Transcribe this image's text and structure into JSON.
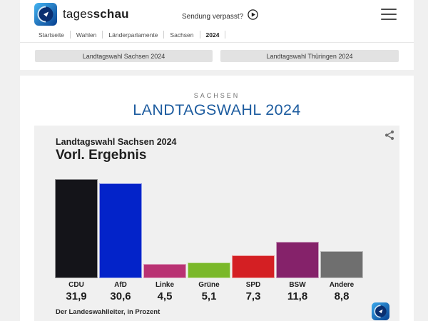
{
  "header": {
    "logo_regular": "tages",
    "logo_bold": "schau",
    "broadcast_link": "Sendung verpasst?",
    "breadcrumb": [
      "Startseite",
      "Wahlen",
      "Länderparlamente",
      "Sachsen",
      "2024"
    ],
    "icons": [
      "tagesschau-globe-icon",
      "play-icon",
      "hamburger-menu-icon"
    ]
  },
  "tabs": [
    {
      "label": "Landtagswahl Sachsen 2024"
    },
    {
      "label": "Landtagswahl Thüringen 2024"
    }
  ],
  "page": {
    "kicker": "SACHSEN",
    "title": "LANDTAGSWAHL 2024"
  },
  "chart": {
    "title": "Landtagswahl Sachsen 2024",
    "subtitle": "Vorl. Ergebnis",
    "source": "Der Landeswahlleiter, in Prozent",
    "icons": [
      "share-icon",
      "tagesschau-globe-icon"
    ]
  },
  "chart_data": {
    "type": "bar",
    "title": "Landtagswahl Sachsen 2024 – Vorl. Ergebnis",
    "categories": [
      "CDU",
      "AfD",
      "Linke",
      "Grüne",
      "SPD",
      "BSW",
      "Andere"
    ],
    "values": [
      31.9,
      30.6,
      4.5,
      5.1,
      7.3,
      11.8,
      8.8
    ],
    "value_labels": [
      "31,9",
      "30,6",
      "4,5",
      "5,1",
      "7,3",
      "11,8",
      "8,8"
    ],
    "bar_colors": [
      "#141419",
      "#0323c9",
      "#b93273",
      "#7ab829",
      "#d41f23",
      "#85226a",
      "#6f6f6f"
    ],
    "unit": "Prozent",
    "ylim": [
      0,
      32
    ],
    "grid": false,
    "legend": "none",
    "source": "Der Landeswahlleiter, in Prozent"
  },
  "colors": {
    "accent_blue": "#1d5c9f",
    "page_bg": "#f0f0f0",
    "card_bg": "#ffffff",
    "chart_card_bg": "#f0f0f0",
    "button_bg": "#e2e2e2"
  }
}
